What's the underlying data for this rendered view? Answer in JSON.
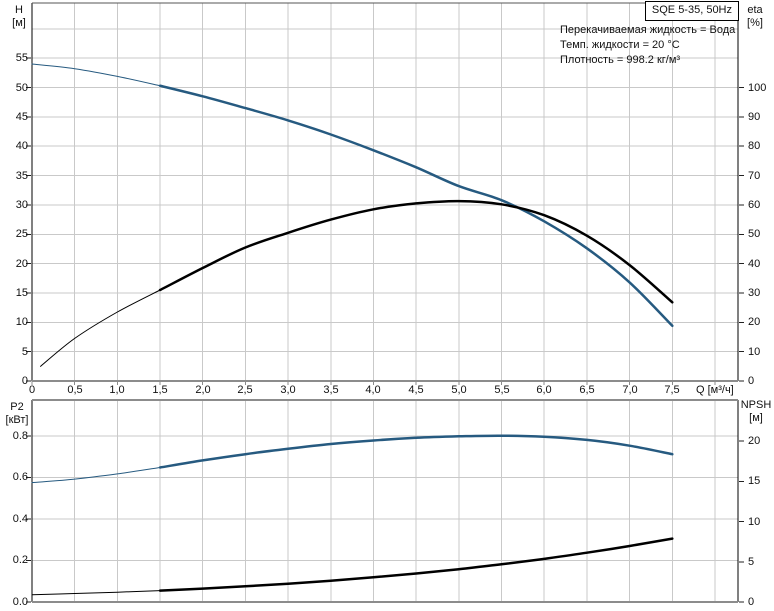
{
  "colors": {
    "curve_blue": "#265a80",
    "curve_black": "#000000",
    "grid": "#c9c9c9",
    "axis_gray": "#8c8c8c",
    "frame": "#000000",
    "text": "#111111"
  },
  "chart_data": [
    {
      "type": "line",
      "title": "SQE 5-35, 50Hz",
      "annotations": [
        "Перекачиваемая жидкость = Вода",
        "Темп. жидкости = 20 °C",
        "Плотность = 998.2 кг/м³"
      ],
      "xlabel": "Q [м³/ч]",
      "xlim": [
        0,
        8.27
      ],
      "x_ticks": {
        "values": [
          0,
          0.5,
          1,
          1.5,
          2,
          2.5,
          3,
          3.5,
          4,
          4.5,
          5,
          5.5,
          6,
          6.5,
          7,
          7.5
        ],
        "labels": [
          "0",
          "0,5",
          "1,0",
          "1,5",
          "2,0",
          "2,5",
          "3,0",
          "3,5",
          "4,0",
          "4,5",
          "5,0",
          "5,5",
          "6,0",
          "6,5",
          "7,0",
          "7,5"
        ],
        "grid": [
          0.5,
          1,
          1.5,
          2,
          2.5,
          3,
          3.5,
          4,
          4.5,
          5,
          5.5,
          6,
          6.5,
          7,
          7.5,
          8
        ]
      },
      "left_axis": {
        "label": "H",
        "unit_label": "[м]",
        "lim": [
          0,
          64.4
        ],
        "tick_values": [
          0,
          5,
          10,
          15,
          20,
          25,
          30,
          35,
          40,
          45,
          50,
          55
        ],
        "tick_labels": [
          "0",
          "5",
          "10",
          "15",
          "20",
          "25",
          "30",
          "35",
          "40",
          "45",
          "50",
          "55"
        ],
        "grid_values": [
          5,
          10,
          15,
          20,
          25,
          30,
          35,
          40,
          45,
          50,
          55,
          60
        ]
      },
      "right_axis": {
        "label": "eta",
        "unit_label": "[%]",
        "lim": [
          0,
          128.8
        ],
        "tick_values": [
          0,
          10,
          20,
          30,
          40,
          50,
          60,
          70,
          80,
          90,
          100
        ],
        "tick_labels": [
          "0",
          "10",
          "20",
          "30",
          "40",
          "50",
          "60",
          "70",
          "80",
          "90",
          "100"
        ]
      },
      "series": [
        {
          "name": "H-Q pump curve",
          "axis": "left",
          "color": "#265a80",
          "thin": [
            [
              0,
              54
            ],
            [
              0.5,
              53.2
            ],
            [
              1,
              51.9
            ],
            [
              1.5,
              50.3
            ]
          ],
          "thick": [
            [
              1.5,
              50.3
            ],
            [
              2,
              48.5
            ],
            [
              2.5,
              46.5
            ],
            [
              3,
              44.4
            ],
            [
              3.5,
              42
            ],
            [
              4,
              39.3
            ],
            [
              4.5,
              36.4
            ],
            [
              5,
              33.2
            ],
            [
              5.5,
              30.8
            ],
            [
              6,
              27.2
            ],
            [
              6.5,
              22.6
            ],
            [
              7,
              16.8
            ],
            [
              7.5,
              9.4
            ]
          ]
        },
        {
          "name": "eta efficiency curve",
          "axis": "right",
          "color": "#000000",
          "thin": [
            [
              0.1,
              5
            ],
            [
              0.5,
              14.5
            ],
            [
              1,
              23.5
            ],
            [
              1.5,
              31
            ]
          ],
          "thick": [
            [
              1.5,
              31
            ],
            [
              2,
              38.5
            ],
            [
              2.5,
              45.5
            ],
            [
              3,
              50.5
            ],
            [
              3.5,
              55
            ],
            [
              4,
              58.5
            ],
            [
              4.5,
              60.5
            ],
            [
              5,
              61.3
            ],
            [
              5.5,
              60.2
            ],
            [
              6,
              56.5
            ],
            [
              6.5,
              49.5
            ],
            [
              7,
              39.5
            ],
            [
              7.5,
              26.8
            ]
          ]
        }
      ]
    },
    {
      "type": "line",
      "title": "",
      "xlabel": "",
      "xlim": [
        0,
        8.27
      ],
      "x_ticks": {
        "values": [],
        "labels": [],
        "grid": [
          0.5,
          1,
          1.5,
          2,
          2.5,
          3,
          3.5,
          4,
          4.5,
          5,
          5.5,
          6,
          6.5,
          7,
          7.5,
          8
        ]
      },
      "left_axis": {
        "label": "P2",
        "unit_label": "[кВт]",
        "lim": [
          0,
          0.973
        ],
        "tick_values": [
          0,
          0.2,
          0.4,
          0.6,
          0.8
        ],
        "tick_labels": [
          "0.0",
          "0.2",
          "0.4",
          "0.6",
          "0.8"
        ],
        "grid_values": [
          0.2,
          0.4,
          0.6,
          0.8
        ]
      },
      "right_axis": {
        "label": "NPSH",
        "unit_label": "[м]",
        "lim": [
          0,
          25.1
        ],
        "tick_values": [
          0,
          5,
          10,
          15,
          20
        ],
        "tick_labels": [
          "0",
          "5",
          "10",
          "15",
          "20"
        ]
      },
      "series": [
        {
          "name": "P2 power curve",
          "axis": "left",
          "color": "#265a80",
          "thin": [
            [
              0,
              0.575
            ],
            [
              0.5,
              0.592
            ],
            [
              1,
              0.617
            ],
            [
              1.5,
              0.648
            ]
          ],
          "thick": [
            [
              1.5,
              0.648
            ],
            [
              2,
              0.682
            ],
            [
              2.5,
              0.712
            ],
            [
              3,
              0.738
            ],
            [
              3.5,
              0.761
            ],
            [
              4,
              0.778
            ],
            [
              4.5,
              0.791
            ],
            [
              5,
              0.798
            ],
            [
              5.5,
              0.801
            ],
            [
              6,
              0.796
            ],
            [
              6.5,
              0.781
            ],
            [
              7,
              0.753
            ],
            [
              7.5,
              0.712
            ]
          ]
        },
        {
          "name": "NPSH curve",
          "axis": "right",
          "color": "#000000",
          "thin": [
            [
              0,
              0.9
            ],
            [
              0.5,
              1.05
            ],
            [
              1,
              1.22
            ],
            [
              1.5,
              1.42
            ]
          ],
          "thick": [
            [
              1.5,
              1.42
            ],
            [
              2,
              1.67
            ],
            [
              2.5,
              1.95
            ],
            [
              3,
              2.28
            ],
            [
              3.5,
              2.65
            ],
            [
              4,
              3.07
            ],
            [
              4.5,
              3.54
            ],
            [
              5,
              4.08
            ],
            [
              5.5,
              4.68
            ],
            [
              6,
              5.36
            ],
            [
              6.5,
              6.12
            ],
            [
              7,
              6.96
            ],
            [
              7.5,
              7.88
            ]
          ]
        }
      ]
    }
  ]
}
